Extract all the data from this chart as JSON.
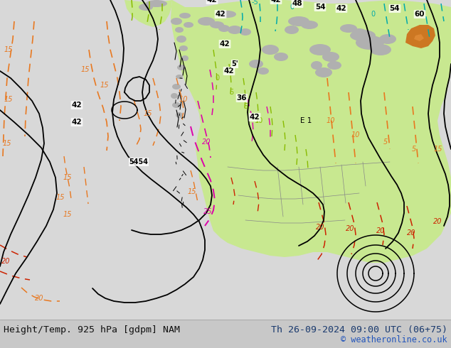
{
  "title_left": "Height/Temp. 925 hPa [gdpm] NAM",
  "title_right": "Th 26-09-2024 09:00 UTC (06+75)",
  "copyright": "© weatheronline.co.uk",
  "bg_color": "#d8d8d8",
  "map_bg": "#d8d8d8",
  "green_fill": "#c8e89a",
  "gray_fill": "#b8b8b8",
  "orange_fill": "#d4882a",
  "text_color_left": "#111111",
  "text_color_right": "#1a3a6e",
  "copyright_color": "#2255bb",
  "footer_bg": "#c8c8c8",
  "title_fontsize": 9.5,
  "copyright_fontsize": 8.5,
  "figsize": [
    6.34,
    4.9
  ],
  "dpi": 100
}
